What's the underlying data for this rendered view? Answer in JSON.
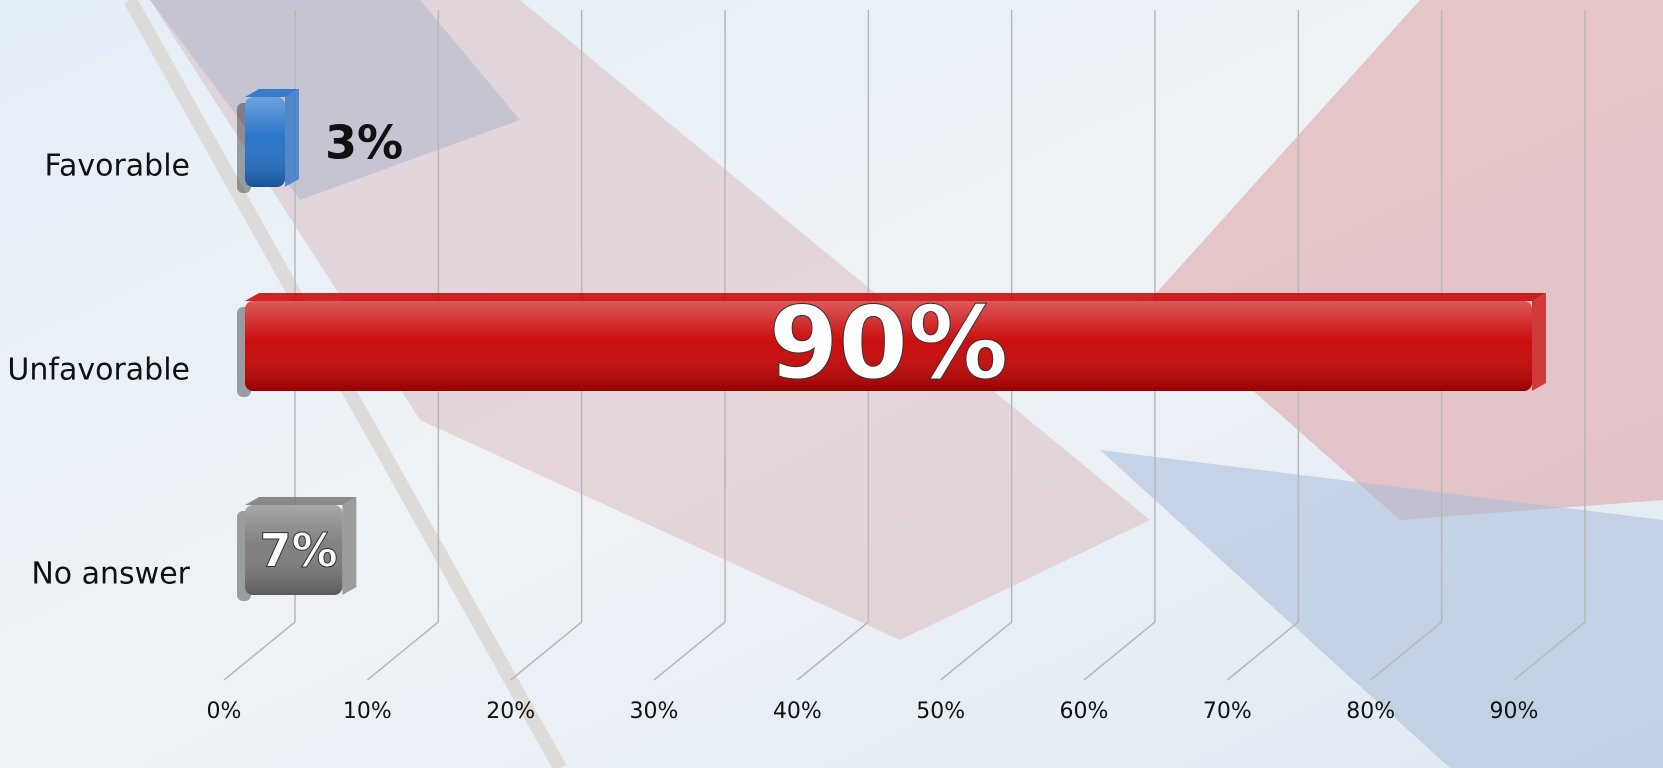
{
  "chart_data": {
    "type": "bar",
    "orientation": "horizontal",
    "categories": [
      "Favorable",
      "Unfavorable",
      "No answer"
    ],
    "values": [
      3,
      90,
      7
    ],
    "value_labels": [
      "3%",
      "90%",
      "7%"
    ],
    "colors": [
      "#1f6fc8",
      "#c80000",
      "#7a7878"
    ],
    "xlim": [
      0,
      90
    ],
    "xticks": [
      {
        "value": 0,
        "label": "0%"
      },
      {
        "value": 10,
        "label": "10%"
      },
      {
        "value": 20,
        "label": "20%"
      },
      {
        "value": 30,
        "label": "30%"
      },
      {
        "value": 40,
        "label": "40%"
      },
      {
        "value": 50,
        "label": "50%"
      },
      {
        "value": 60,
        "label": "60%"
      },
      {
        "value": 70,
        "label": "70%"
      },
      {
        "value": 80,
        "label": "80%"
      },
      {
        "value": 90,
        "label": "90%"
      }
    ],
    "grid": true
  }
}
